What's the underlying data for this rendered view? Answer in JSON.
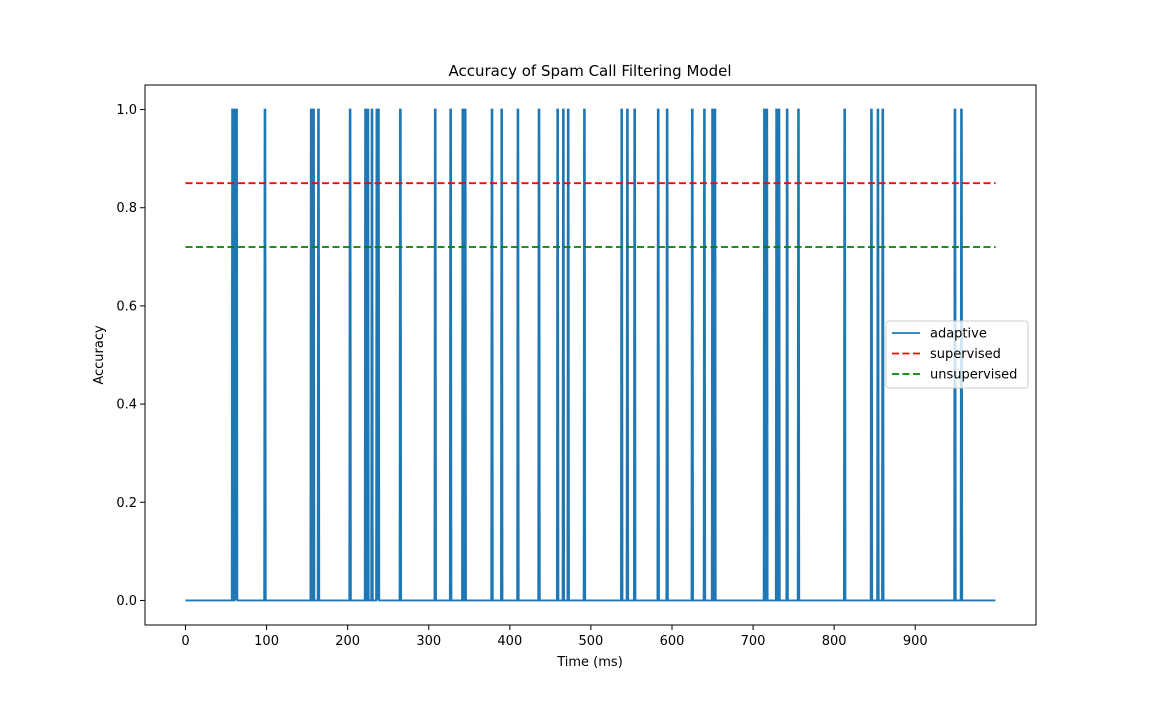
{
  "chart_data": {
    "type": "line",
    "title": "Accuracy of Spam Call Filtering Model",
    "xlabel": "Time (ms)",
    "ylabel": "Accuracy",
    "xlim": [
      -49.95,
      1048.95
    ],
    "ylim": [
      -0.05,
      1.05
    ],
    "x_ticks": [
      0,
      100,
      200,
      300,
      400,
      500,
      600,
      700,
      800,
      900
    ],
    "x_tick_labels": [
      "0",
      "100",
      "200",
      "300",
      "400",
      "500",
      "600",
      "700",
      "800",
      "900"
    ],
    "y_ticks": [
      0.0,
      0.2,
      0.4,
      0.6,
      0.8,
      1.0
    ],
    "y_tick_labels": [
      "0.0",
      "0.2",
      "0.4",
      "0.6",
      "0.8",
      "1.0"
    ],
    "grid": false,
    "legend_position": "center-right",
    "series": [
      {
        "name": "adaptive",
        "style": "solid",
        "color": "#1f77b4",
        "x_range": [
          0,
          999
        ],
        "baseline": 0,
        "spikes_at": [
          58,
          61,
          63,
          98,
          155,
          158,
          164,
          203,
          222,
          225,
          230,
          236,
          238,
          265,
          308,
          327,
          342,
          345,
          378,
          390,
          410,
          436,
          459,
          466,
          472,
          492,
          538,
          545,
          554,
          583,
          594,
          625,
          640,
          650,
          653,
          714,
          717,
          729,
          732,
          742,
          756,
          813,
          846,
          854,
          860,
          949,
          957
        ],
        "spike_value": 1
      },
      {
        "name": "supervised",
        "style": "dashed",
        "color": "#ff0000",
        "x": [
          0,
          999
        ],
        "y": [
          0.85,
          0.85
        ]
      },
      {
        "name": "unsupervised",
        "style": "dashed",
        "color": "#008000",
        "x": [
          0,
          999
        ],
        "y": [
          0.72,
          0.72
        ]
      }
    ]
  }
}
